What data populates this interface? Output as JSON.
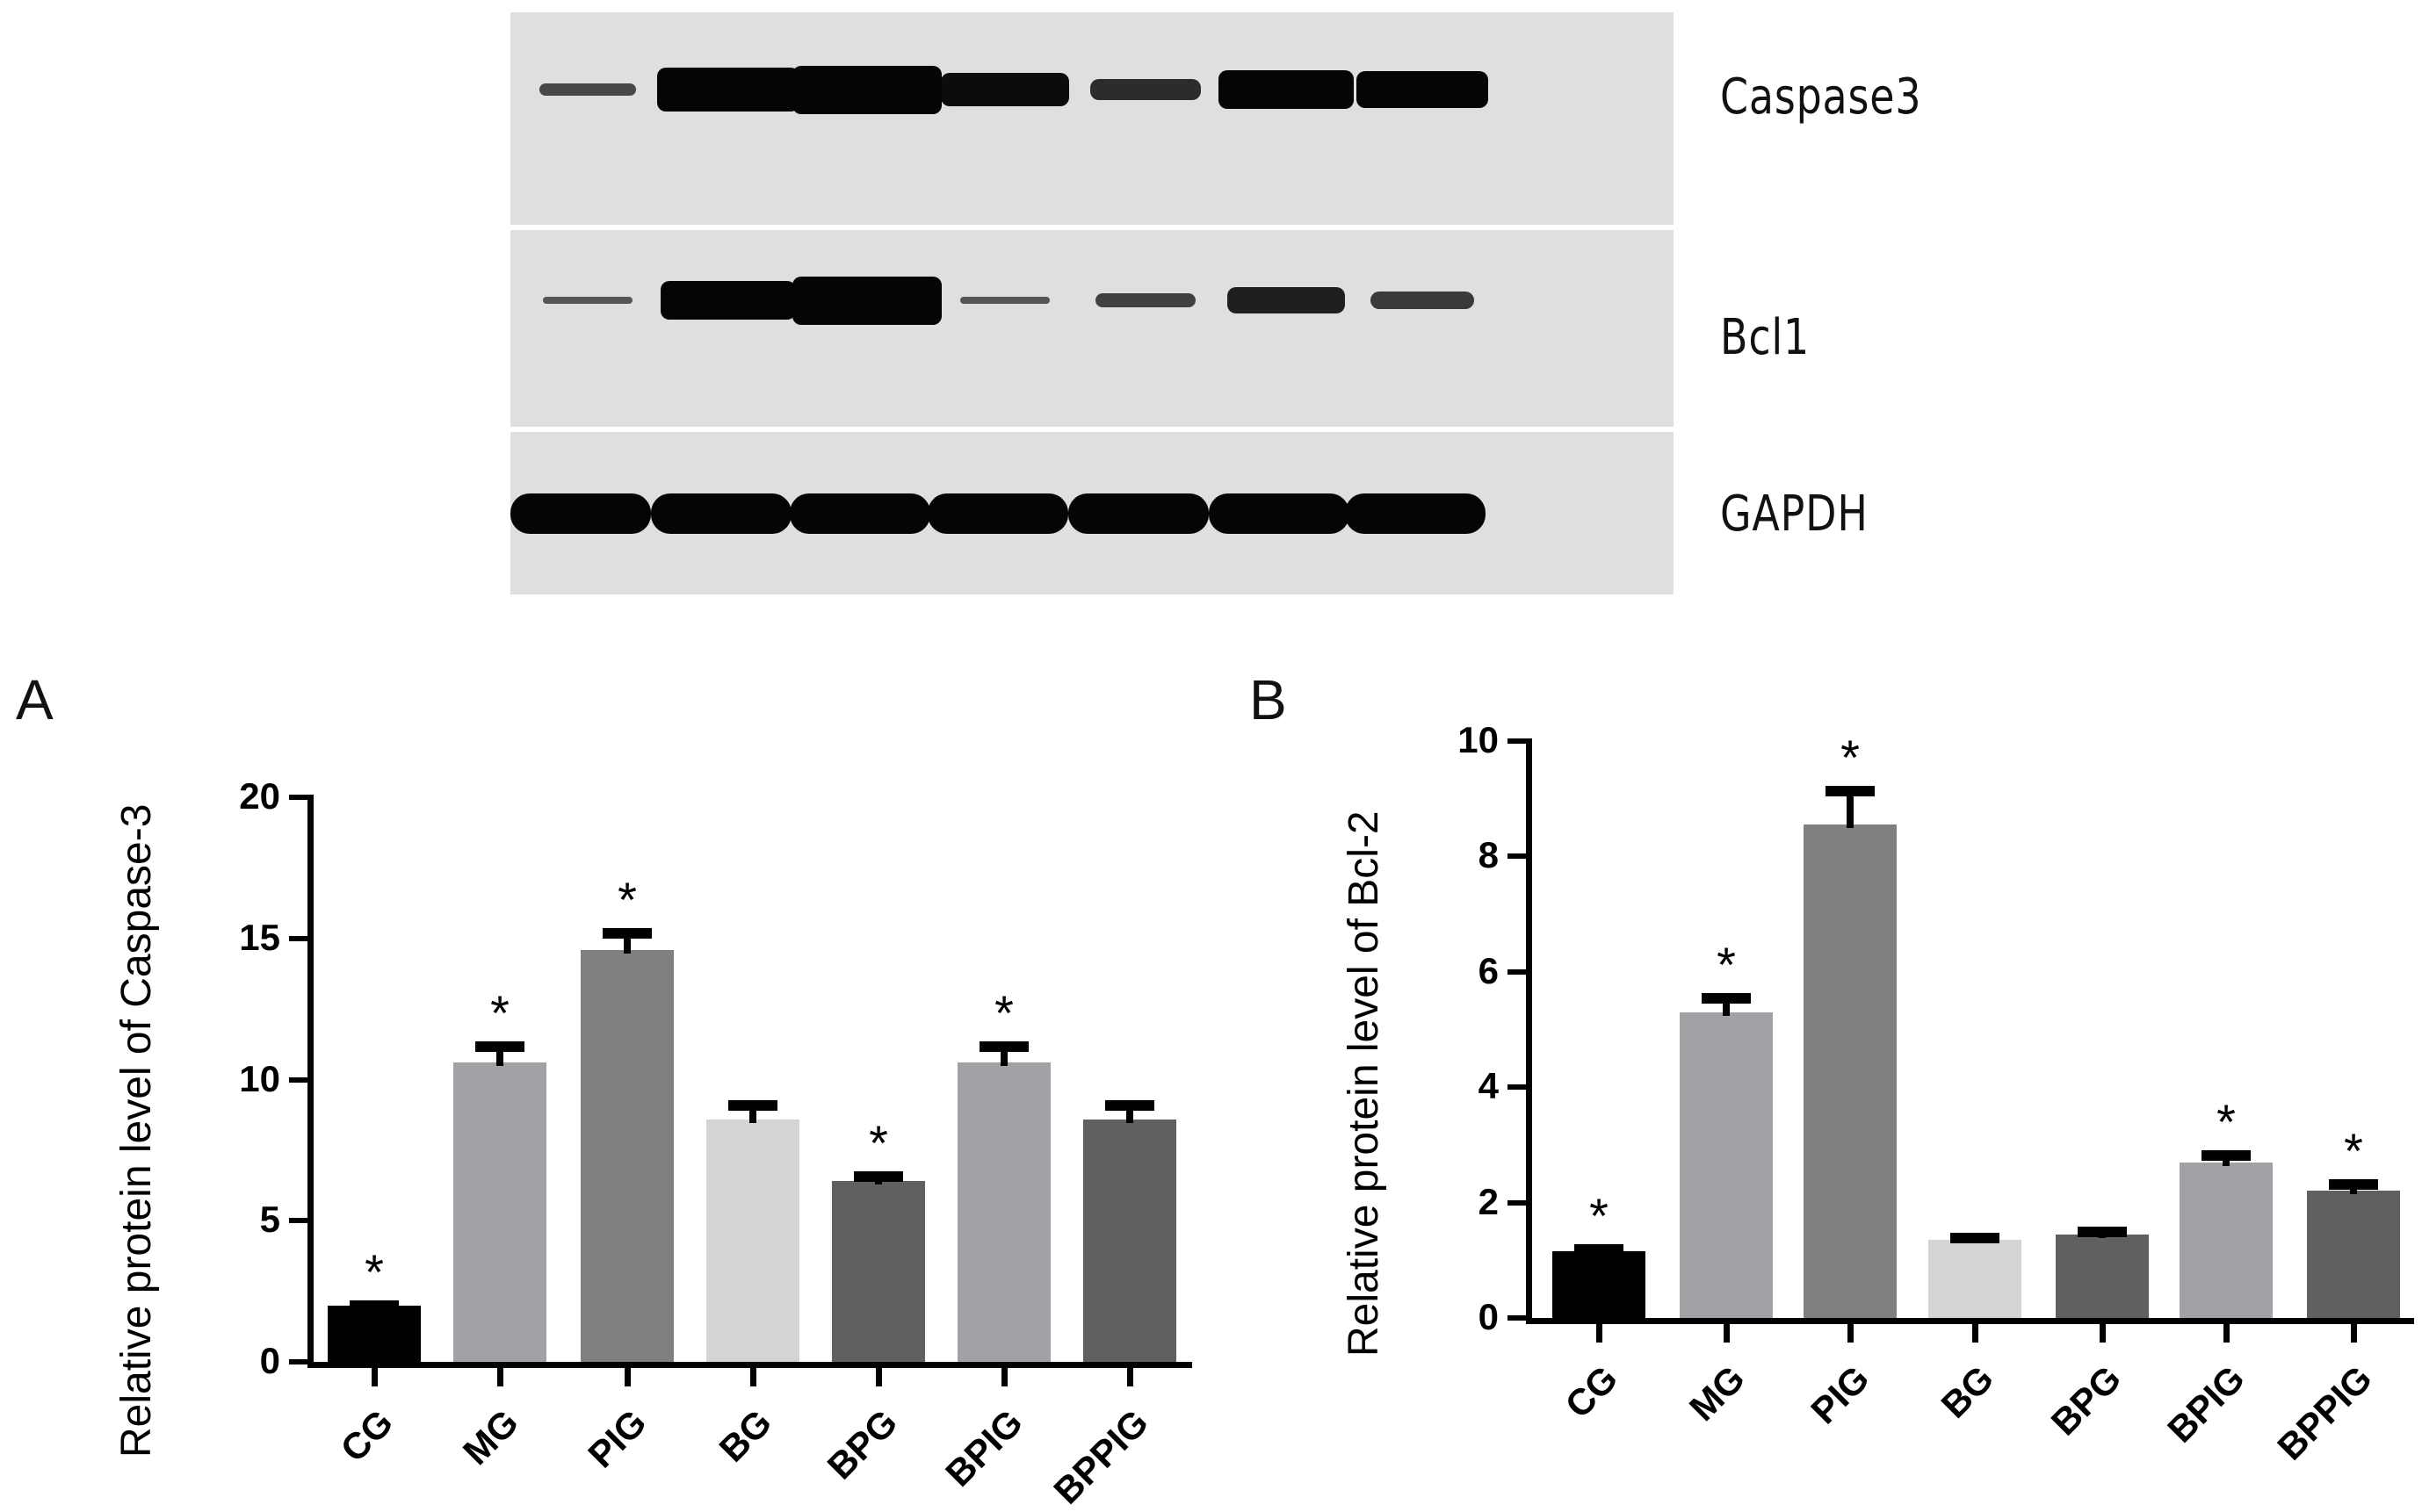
{
  "western_blot": {
    "lanes": 7,
    "rows": [
      {
        "label": "Caspase3",
        "intensities": [
          0.25,
          0.9,
          1.0,
          0.7,
          0.45,
          0.8,
          0.75
        ]
      },
      {
        "label": "Bcl1",
        "intensities": [
          0.15,
          0.8,
          1.0,
          0.15,
          0.3,
          0.55,
          0.35
        ]
      },
      {
        "label": "GAPDH",
        "intensities": [
          0.9,
          0.85,
          0.9,
          0.85,
          0.9,
          0.9,
          0.95
        ]
      }
    ],
    "background_color": "#dfdfdf"
  },
  "panels": {
    "a_label": "A",
    "b_label": "B"
  },
  "chart_data": [
    {
      "type": "bar",
      "panel": "A",
      "title": "",
      "xlabel": "",
      "ylabel": "Relative protein level of Caspase-3",
      "ylim": [
        0,
        20
      ],
      "yticks": [
        0,
        5,
        10,
        15,
        20
      ],
      "grid": false,
      "legend": null,
      "categories": [
        "CG",
        "MG",
        "PIG",
        "BG",
        "BPG",
        "BPIG",
        "BPPIG"
      ],
      "values": [
        2.0,
        10.6,
        14.6,
        8.6,
        6.4,
        10.6,
        8.6
      ],
      "error_upper": [
        2.1,
        11.3,
        15.3,
        9.2,
        6.7,
        11.3,
        9.2
      ],
      "significance": [
        "*",
        "*",
        "*",
        "",
        "*",
        "*",
        ""
      ],
      "colors": [
        "#000000",
        "#a2a1a5",
        "#808080",
        "#d4d4d4",
        "#606060",
        "#a2a1a5",
        "#606060"
      ]
    },
    {
      "type": "bar",
      "panel": "B",
      "title": "",
      "xlabel": "",
      "ylabel": "Relative protein level of Bcl-2",
      "ylim": [
        0,
        10
      ],
      "yticks": [
        0,
        2,
        4,
        6,
        8,
        10
      ],
      "grid": false,
      "legend": null,
      "categories": [
        "CG",
        "MG",
        "PIG",
        "BG",
        "BPG",
        "BPIG",
        "BPPIG"
      ],
      "values": [
        1.15,
        5.3,
        8.55,
        1.35,
        1.45,
        2.7,
        2.2
      ],
      "error_upper": [
        1.25,
        5.6,
        9.2,
        1.45,
        1.55,
        2.87,
        2.37
      ],
      "significance": [
        "*",
        "*",
        "*",
        "",
        "",
        "*",
        "*"
      ],
      "colors": [
        "#000000",
        "#a2a1a5",
        "#808080",
        "#d4d4d4",
        "#606060",
        "#a2a1a5",
        "#606060"
      ]
    }
  ]
}
